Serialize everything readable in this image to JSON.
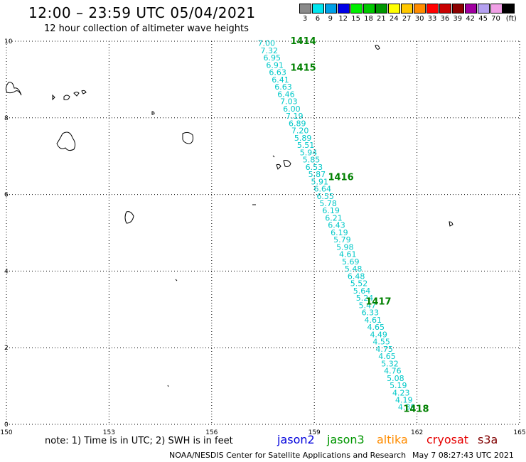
{
  "header": {
    "title": "12:00 – 23:59 UTC 05/04/2021",
    "subtitle": "12 hour collection of altimeter wave heights"
  },
  "legend": {
    "unit_label": "(ft)",
    "bins": [
      {
        "label": "3",
        "color": "#8a8a8a"
      },
      {
        "label": "6",
        "color": "#00e5ee"
      },
      {
        "label": "9",
        "color": "#00a0e6"
      },
      {
        "label": "12",
        "color": "#0000e6"
      },
      {
        "label": "15",
        "color": "#00ee00"
      },
      {
        "label": "18",
        "color": "#00c800"
      },
      {
        "label": "21",
        "color": "#009600"
      },
      {
        "label": "24",
        "color": "#ffff00"
      },
      {
        "label": "27",
        "color": "#ffc800"
      },
      {
        "label": "30",
        "color": "#ff8c00"
      },
      {
        "label": "33",
        "color": "#ff0000"
      },
      {
        "label": "36",
        "color": "#c80000"
      },
      {
        "label": "39",
        "color": "#8c0000"
      },
      {
        "label": "42",
        "color": "#a000a0"
      },
      {
        "label": "45",
        "color": "#b4a0f0"
      },
      {
        "label": "70",
        "color": "#f0a0e6"
      },
      {
        "label": "",
        "color": "#000000"
      }
    ]
  },
  "map": {
    "lon_range": [
      150,
      165
    ],
    "lat_range": [
      0,
      10
    ],
    "lon_ticks": [
      "150",
      "153",
      "156",
      "159",
      "162",
      "165"
    ],
    "lat_ticks": [
      "0",
      "2",
      "4",
      "6",
      "8",
      "10"
    ],
    "grid_lines": true,
    "grid_style": "dotted",
    "track_color": "#00c8c8",
    "time_label_color": "#008000",
    "track_start": [
      157.6,
      9.95
    ],
    "track_end": [
      161.7,
      0.45
    ],
    "swh_values": [
      "7.00",
      "7.32",
      "6.95",
      "6.91",
      "6.63",
      "6.41",
      "6.63",
      "6.46",
      "7.03",
      "6.00",
      "7.19",
      "6.89",
      "7.20",
      "5.89",
      "5.51",
      "5.94",
      "5.85",
      "6.53",
      "5.87",
      "5.91",
      "6.64",
      "6.55",
      "5.78",
      "6.19",
      "6.21",
      "6.43",
      "6.19",
      "5.79",
      "5.98",
      "4.61",
      "5.69",
      "5.48",
      "6.48",
      "5.52",
      "5.64",
      "5.24",
      "5.47",
      "6.33",
      "4.61",
      "4.65",
      "4.49",
      "4.55",
      "4.75",
      "4.65",
      "5.32",
      "4.76",
      "5.08",
      "5.19",
      "4.23",
      "4.19",
      "4.39"
    ],
    "time_labels": [
      {
        "label": "1414",
        "lon": 158.3,
        "lat": 10.0
      },
      {
        "label": "1415",
        "lon": 158.3,
        "lat": 9.3
      },
      {
        "label": "1416",
        "lon": 159.4,
        "lat": 6.45
      },
      {
        "label": "1417",
        "lon": 160.5,
        "lat": 3.2
      },
      {
        "label": "1418",
        "lon": 161.6,
        "lat": 0.4
      }
    ]
  },
  "note": "note:  1) Time is in UTC;  2) SWH is in feet",
  "satellites": [
    {
      "name": "jason2",
      "color": "#0000dc"
    },
    {
      "name": "jason3",
      "color": "#009600"
    },
    {
      "name": "altika",
      "color": "#ff8c00"
    },
    {
      "name": "cryosat",
      "color": "#e60000"
    },
    {
      "name": "s3a",
      "color": "#800000"
    }
  ],
  "footer": {
    "credit": "NOAA/NESDIS Center for Satellite Applications and Research",
    "timestamp": "May  7 08:27:43 UTC 2021"
  }
}
